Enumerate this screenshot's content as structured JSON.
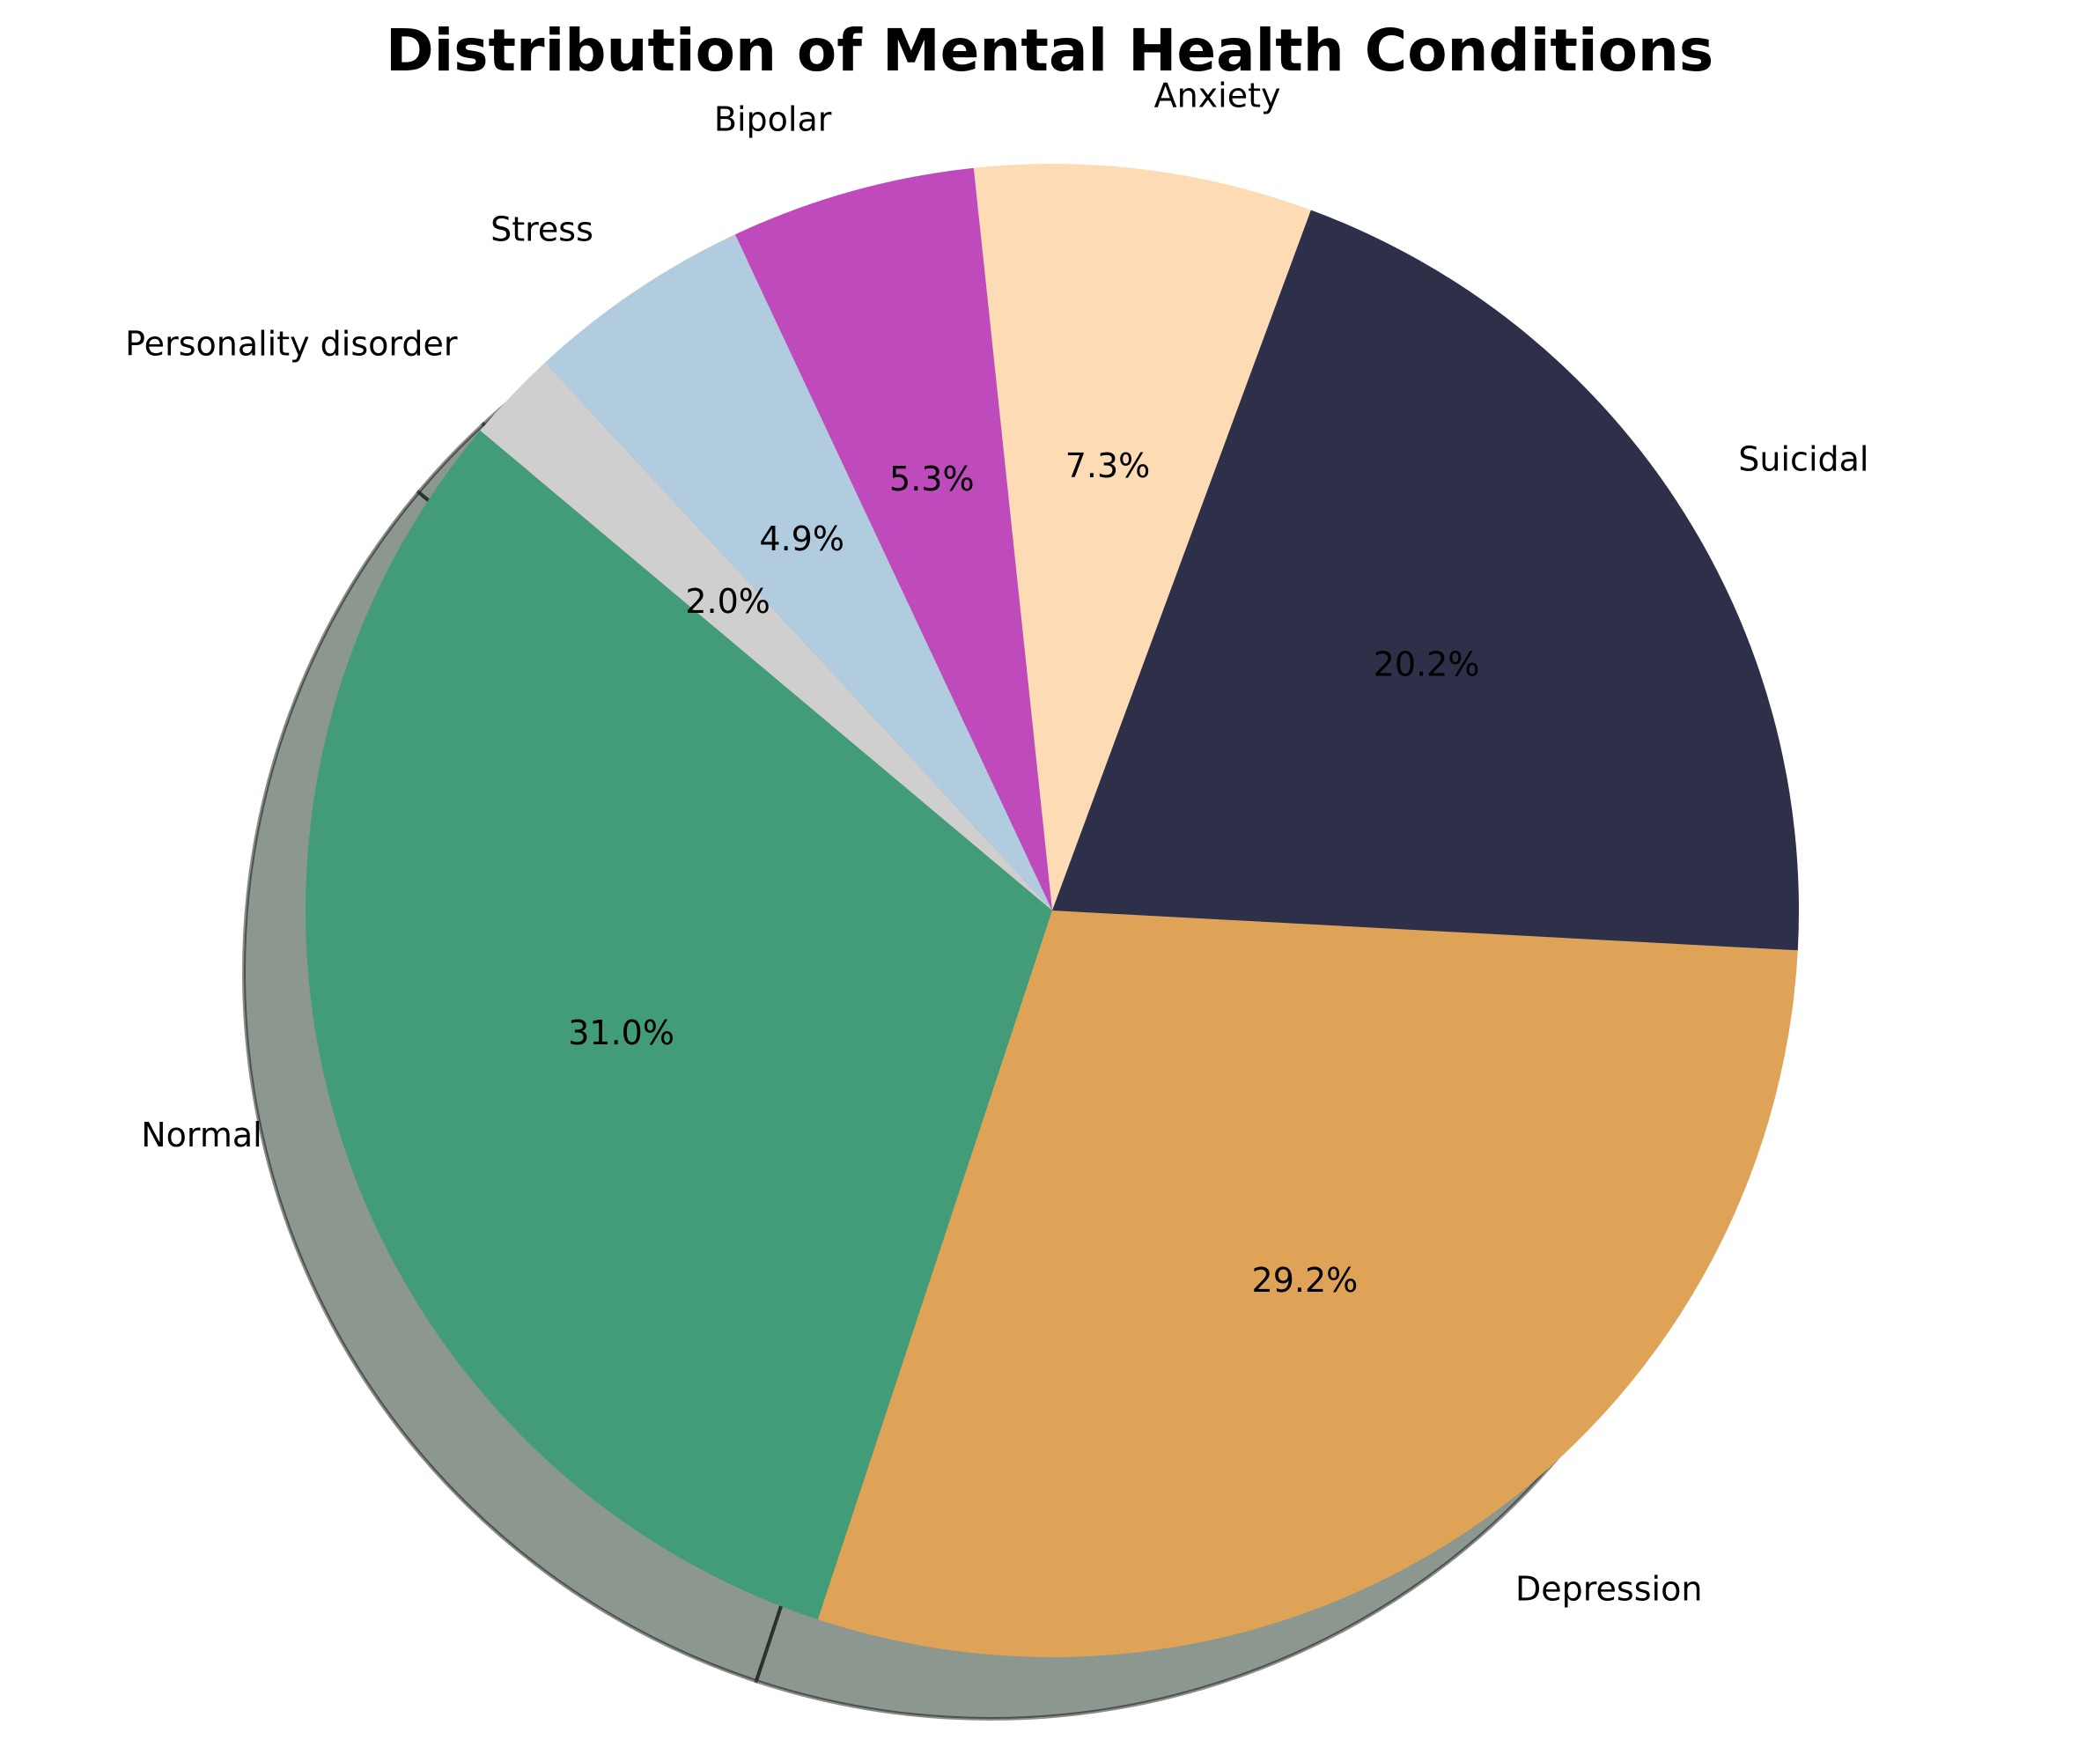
{
  "chart_data": {
    "type": "pie",
    "title": "Distribution of Mental Health Conditions",
    "categories": [
      "Normal",
      "Depression",
      "Suicidal",
      "Anxiety",
      "Bipolar",
      "Stress",
      "Personality disorder"
    ],
    "values": [
      31.0,
      29.2,
      20.2,
      7.3,
      5.3,
      4.9,
      2.0
    ],
    "value_labels": [
      "31.0%",
      "29.2%",
      "20.2%",
      "7.3%",
      "5.3%",
      "4.9%",
      "2.0%"
    ],
    "colors": [
      "#439c78",
      "#dea357",
      "#2e2f48",
      "#fddbb4",
      "#bf4abb",
      "#b1ccdf",
      "#cfcfcf"
    ],
    "start_angle_deg": 140,
    "direction": "counterclockwise",
    "shadow": true,
    "legend": "none"
  }
}
